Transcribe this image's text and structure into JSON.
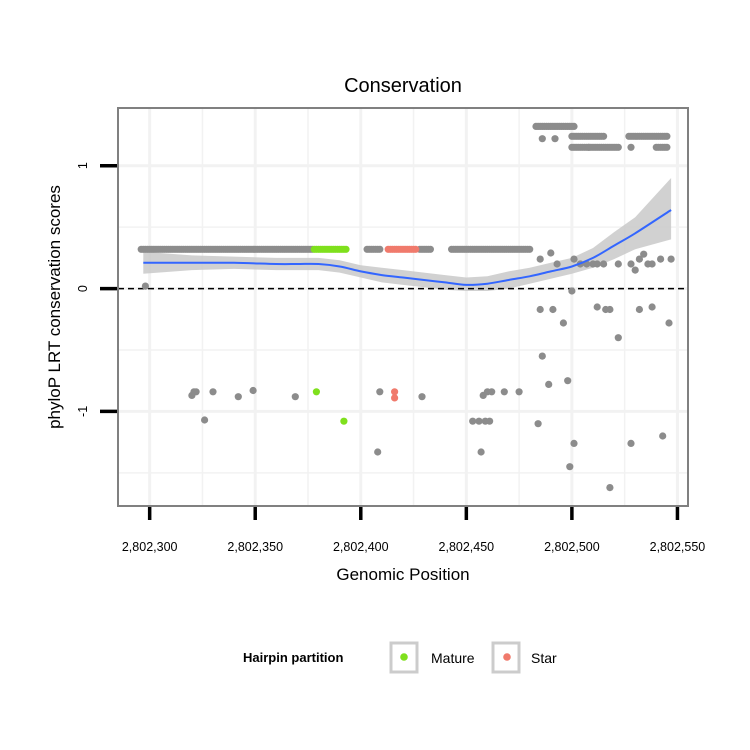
{
  "chart_data": {
    "type": "scatter",
    "title": "Conservation",
    "xlabel": "Genomic Position",
    "ylabel": "phyloP LRT conservation scores",
    "xlim": [
      2802285,
      2802555
    ],
    "ylim": [
      -1.77,
      1.47
    ],
    "x_ticks": [
      2802300,
      2802350,
      2802400,
      2802450,
      2802500,
      2802550
    ],
    "x_tick_labels": [
      "2,802,300",
      "2,802,350",
      "2,802,400",
      "2,802,450",
      "2,802,500",
      "2,802,550"
    ],
    "y_ticks": [
      -1,
      0,
      1
    ],
    "y_tick_labels": [
      "-1",
      "0",
      "1"
    ],
    "reference_line": {
      "y": 0,
      "style": "dashed"
    },
    "legend": {
      "title": "Hairpin partition",
      "position": "bottom",
      "entries": [
        {
          "label": "Mature",
          "color": "#7FE01D"
        },
        {
          "label": "Star",
          "color": "#F07A6C"
        }
      ]
    },
    "colors": {
      "other": "#8C8C8C",
      "mature": "#7FE01D",
      "star": "#F07A6C",
      "smooth": "#3366FF",
      "ribbon": "#C9C9C9",
      "panel_bg": "#FFFFFF",
      "grid": "#F2F2F2",
      "border": "#808080"
    },
    "series": [
      {
        "name": "Other",
        "segments": [
          {
            "from": 2802296,
            "to": 2802377,
            "step": 1,
            "y": 0.32
          },
          {
            "from": 2802403,
            "to": 2802409,
            "step": 1,
            "y": 0.32
          },
          {
            "from": 2802428,
            "to": 2802433,
            "step": 1,
            "y": 0.32
          },
          {
            "from": 2802443,
            "to": 2802480,
            "step": 1,
            "y": 0.32
          },
          {
            "from": 2802483,
            "to": 2802501,
            "step": 1,
            "y": 1.32
          },
          {
            "from": 2802500,
            "to": 2802515,
            "step": 1,
            "y": 1.24
          },
          {
            "from": 2802527,
            "to": 2802545,
            "step": 1,
            "y": 1.24
          },
          {
            "from": 2802500,
            "to": 2802522,
            "step": 1,
            "y": 1.15
          },
          {
            "from": 2802540,
            "to": 2802545,
            "step": 1,
            "y": 1.15
          }
        ],
        "points": [
          [
            2802298,
            0.02
          ],
          [
            2802486,
            1.22
          ],
          [
            2802492,
            1.22
          ],
          [
            2802508,
            1.15
          ],
          [
            2802528,
            1.15
          ],
          [
            2802320,
            -0.87
          ],
          [
            2802321,
            -0.84
          ],
          [
            2802322,
            -0.84
          ],
          [
            2802326,
            -1.07
          ],
          [
            2802330,
            -0.84
          ],
          [
            2802342,
            -0.88
          ],
          [
            2802349,
            -0.83
          ],
          [
            2802369,
            -0.88
          ],
          [
            2802408,
            -1.33
          ],
          [
            2802409,
            -0.84
          ],
          [
            2802429,
            -0.88
          ],
          [
            2802453,
            -1.08
          ],
          [
            2802456,
            -1.08
          ],
          [
            2802457,
            -1.33
          ],
          [
            2802458,
            -0.87
          ],
          [
            2802459,
            -1.08
          ],
          [
            2802460,
            -0.84
          ],
          [
            2802461,
            -1.08
          ],
          [
            2802462,
            -0.84
          ],
          [
            2802468,
            -0.84
          ],
          [
            2802475,
            -0.84
          ],
          [
            2802484,
            -1.1
          ],
          [
            2802486,
            -0.55
          ],
          [
            2802489,
            -0.78
          ],
          [
            2802496,
            -0.28
          ],
          [
            2802498,
            -0.75
          ],
          [
            2802499,
            -1.45
          ],
          [
            2802501,
            -1.26
          ],
          [
            2802518,
            -1.62
          ],
          [
            2802528,
            -1.26
          ],
          [
            2802543,
            -1.2
          ],
          [
            2802546,
            -0.28
          ],
          [
            2802485,
            -0.17
          ],
          [
            2802491,
            -0.17
          ],
          [
            2802500,
            -0.02
          ],
          [
            2802512,
            -0.15
          ],
          [
            2802516,
            -0.17
          ],
          [
            2802518,
            -0.17
          ],
          [
            2802522,
            -0.4
          ],
          [
            2802532,
            -0.17
          ],
          [
            2802538,
            -0.15
          ],
          [
            2802485,
            0.24
          ],
          [
            2802490,
            0.29
          ],
          [
            2802493,
            0.2
          ],
          [
            2802501,
            0.24
          ],
          [
            2802504,
            0.2
          ],
          [
            2802507,
            0.2
          ],
          [
            2802510,
            0.2
          ],
          [
            2802512,
            0.2
          ],
          [
            2802515,
            0.2
          ],
          [
            2802522,
            0.2
          ],
          [
            2802528,
            0.2
          ],
          [
            2802530,
            0.15
          ],
          [
            2802532,
            0.24
          ],
          [
            2802534,
            0.28
          ],
          [
            2802536,
            0.2
          ],
          [
            2802538,
            0.2
          ],
          [
            2802542,
            0.24
          ],
          [
            2802547,
            0.24
          ]
        ]
      },
      {
        "name": "Mature",
        "segments": [
          {
            "from": 2802378,
            "to": 2802393,
            "step": 1,
            "y": 0.32
          }
        ],
        "points": [
          [
            2802379,
            -0.84
          ],
          [
            2802392,
            -1.08
          ]
        ]
      },
      {
        "name": "Star",
        "segments": [
          {
            "from": 2802413,
            "to": 2802426,
            "step": 1,
            "y": 0.32
          }
        ],
        "points": [
          [
            2802416,
            -0.84
          ],
          [
            2802416,
            -0.89
          ]
        ]
      }
    ],
    "smooth": {
      "x": [
        2802297,
        2802320,
        2802340,
        2802360,
        2802370,
        2802380,
        2802390,
        2802400,
        2802410,
        2802420,
        2802430,
        2802440,
        2802450,
        2802460,
        2802470,
        2802480,
        2802490,
        2802500,
        2802510,
        2802520,
        2802530,
        2802547
      ],
      "y": [
        0.21,
        0.21,
        0.21,
        0.2,
        0.2,
        0.2,
        0.18,
        0.14,
        0.11,
        0.09,
        0.07,
        0.05,
        0.03,
        0.04,
        0.07,
        0.1,
        0.14,
        0.18,
        0.25,
        0.35,
        0.45,
        0.64
      ],
      "lower": [
        0.12,
        0.15,
        0.16,
        0.15,
        0.15,
        0.15,
        0.13,
        0.09,
        0.05,
        0.03,
        0.01,
        -0.01,
        -0.02,
        -0.02,
        0.0,
        0.04,
        0.08,
        0.12,
        0.17,
        0.24,
        0.32,
        0.4
      ],
      "upper": [
        0.3,
        0.27,
        0.26,
        0.25,
        0.25,
        0.25,
        0.23,
        0.19,
        0.17,
        0.15,
        0.13,
        0.11,
        0.09,
        0.1,
        0.14,
        0.17,
        0.21,
        0.25,
        0.33,
        0.46,
        0.58,
        0.9
      ]
    }
  }
}
